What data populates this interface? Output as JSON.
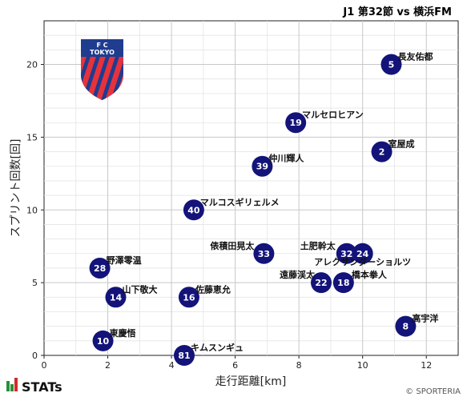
{
  "header": {
    "title": "J1 第32節 vs 横浜FM"
  },
  "crest": {
    "text_top": "F  C",
    "text_mid": "TOKYO",
    "colors": {
      "blue": "#1f3c8f",
      "red": "#e6323c"
    }
  },
  "footer": {
    "logo_text": "STATs",
    "copyright": "© SPORTERIA"
  },
  "colors": {
    "marker": "#13137a",
    "grid": "#c8c8c8"
  },
  "chart_data": {
    "type": "scatter",
    "xlabel": "走行距離[km]",
    "ylabel": "スプリント回数[回]",
    "xlim": [
      0,
      13
    ],
    "ylim": [
      0,
      23
    ],
    "xticks": [
      0,
      2,
      4,
      6,
      8,
      10,
      12
    ],
    "yticks": [
      0,
      5,
      10,
      15,
      20
    ],
    "grid": true,
    "points": [
      {
        "number": "5",
        "name": "長友佑都",
        "x": 10.9,
        "y": 20
      },
      {
        "number": "19",
        "name": "マルセロヒアン",
        "x": 7.9,
        "y": 16
      },
      {
        "number": "2",
        "name": "室屋成",
        "x": 10.6,
        "y": 14
      },
      {
        "number": "39",
        "name": "仲川輝人",
        "x": 6.85,
        "y": 13
      },
      {
        "number": "40",
        "name": "マルコスギリェルメ",
        "x": 4.7,
        "y": 10
      },
      {
        "number": "33",
        "name": "俵積田晃太",
        "x": 6.9,
        "y": 7
      },
      {
        "number": "32",
        "name": "土肥幹太",
        "x": 9.5,
        "y": 7
      },
      {
        "number": "24",
        "name": "アレクサンダーショルツ",
        "x": 10.0,
        "y": 7
      },
      {
        "number": "28",
        "name": "野澤零温",
        "x": 1.75,
        "y": 6
      },
      {
        "number": "22",
        "name": "遠藤渓太",
        "x": 8.7,
        "y": 5
      },
      {
        "number": "18",
        "name": "橋本拳人",
        "x": 9.4,
        "y": 5
      },
      {
        "number": "14",
        "name": "山下敬大",
        "x": 2.25,
        "y": 4
      },
      {
        "number": "16",
        "name": "佐藤恵允",
        "x": 4.55,
        "y": 4
      },
      {
        "number": "8",
        "name": "高宇洋",
        "x": 11.35,
        "y": 2
      },
      {
        "number": "10",
        "name": "東慶悟",
        "x": 1.85,
        "y": 1
      },
      {
        "number": "81",
        "name": "キムスンギュ",
        "x": 4.4,
        "y": 0
      }
    ]
  }
}
